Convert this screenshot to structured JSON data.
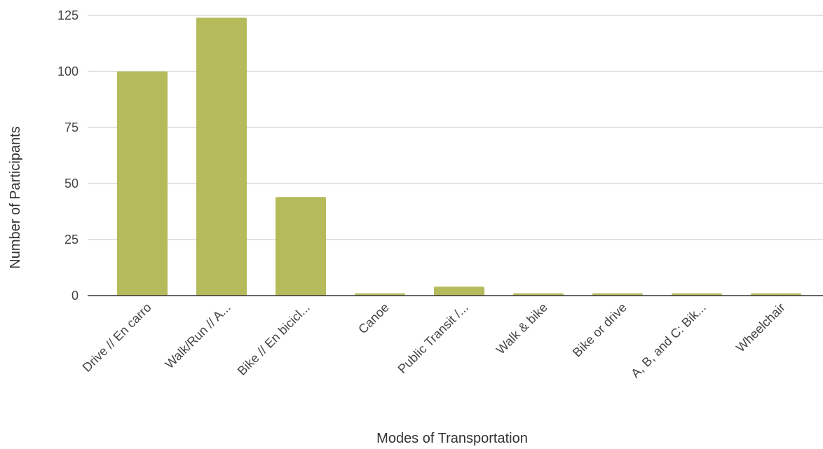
{
  "chart_data": {
    "type": "bar",
    "categories": [
      "Drive // En carro",
      "Walk/Run // A...",
      "Bike // En bicicl...",
      "Canoe",
      "Public Transit /...",
      "Walk & bike",
      "Bike or drive",
      "A, B, and C: Bik...",
      "Wheelchair"
    ],
    "values": [
      100,
      124,
      44,
      1,
      4,
      1,
      1,
      1,
      1
    ],
    "xlabel": "Modes of Transportation",
    "ylabel": "Number of Participants",
    "ylim": [
      0,
      125
    ],
    "yticks": [
      0,
      25,
      50,
      75,
      100,
      125
    ],
    "grid": true,
    "legend": "none",
    "bar_color": "#b5ba5a"
  }
}
